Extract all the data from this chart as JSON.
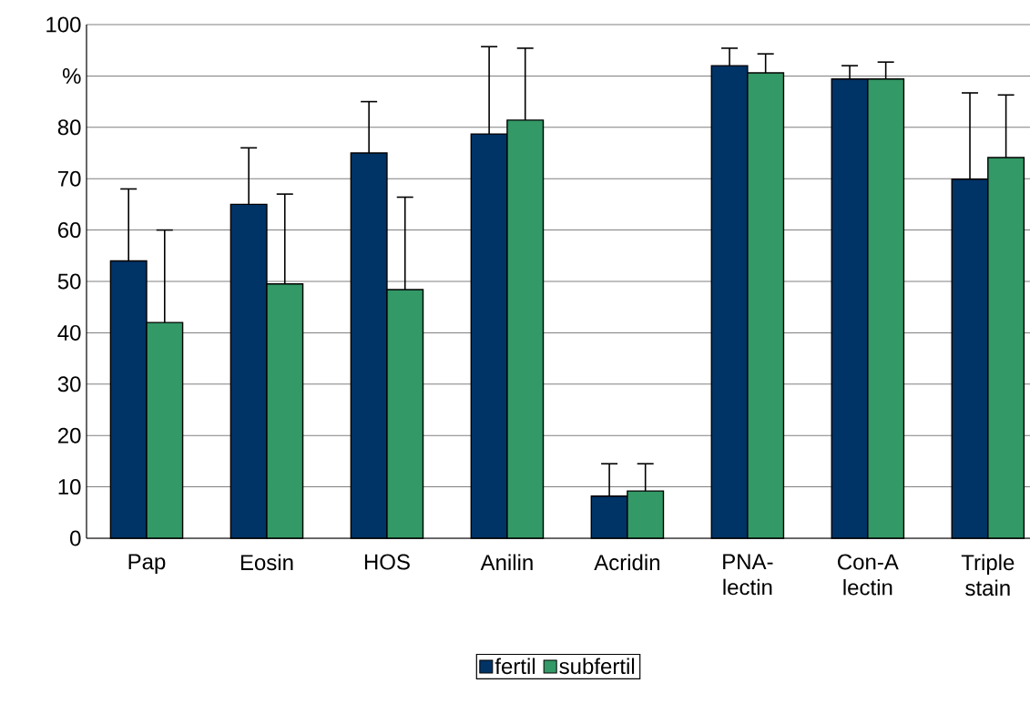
{
  "chart_data": {
    "type": "bar",
    "categories": [
      "Pap",
      "Eosin",
      "HOS",
      "Anilin",
      "Acridin",
      "PNA-lectin",
      "Con-A lectin",
      "Triple stain"
    ],
    "series": [
      {
        "name": "fertil",
        "color": "#003366",
        "values": [
          54,
          65,
          75,
          78.7,
          8.2,
          92,
          89.4,
          69.9
        ],
        "errors": [
          [
            54,
            68
          ],
          [
            65,
            76
          ],
          [
            75,
            85
          ],
          [
            78.7,
            95.7
          ],
          [
            8.2,
            14.5
          ],
          [
            92,
            95.4
          ],
          [
            89.4,
            92
          ],
          [
            69.9,
            86.7
          ]
        ]
      },
      {
        "name": "subfertil",
        "color": "#339966",
        "values": [
          42,
          49.5,
          48.4,
          81.4,
          9.2,
          90.6,
          89.4,
          74.1
        ],
        "errors": [
          [
            42,
            60
          ],
          [
            49.5,
            67
          ],
          [
            48.4,
            66.4
          ],
          [
            81.4,
            95.4
          ],
          [
            9.2,
            14.5
          ],
          [
            90.6,
            94.3
          ],
          [
            89.4,
            92.7
          ],
          [
            74.1,
            86.3
          ]
        ]
      }
    ],
    "ylim": [
      0,
      100
    ],
    "yticks": [
      0,
      10,
      20,
      30,
      40,
      50,
      60,
      70,
      80,
      {
        "value": 90,
        "label": "%"
      },
      100
    ],
    "grid": "y",
    "legend": "bottom"
  }
}
